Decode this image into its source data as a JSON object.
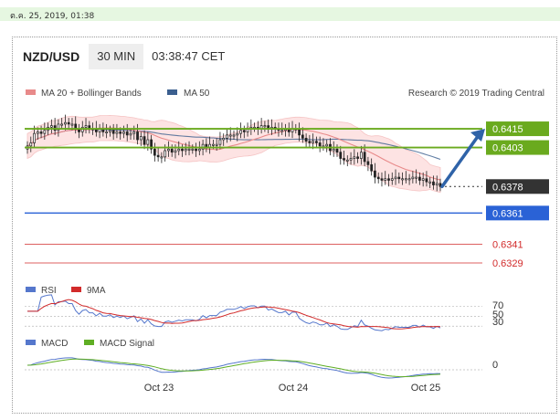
{
  "datestamp": "ต.ค. 25, 2019, 01:38",
  "header": {
    "pair": "NZD/USD",
    "timeframe": "30 MIN",
    "clock": "03:38:47 CET"
  },
  "legend": {
    "ma20": "MA 20 + Bollinger Bands",
    "ma50": "MA 50",
    "credit": "Research © 2019 Trading Central"
  },
  "colors": {
    "green": "#6aaa1e",
    "blue": "#2a62d6",
    "red": "#d22b2b",
    "dark": "#333333",
    "ma20": "#e88a8a",
    "ma50": "#3b5f8f",
    "band": "#fde3e3",
    "arrow": "#2f63a8"
  },
  "chart_data": [
    {
      "type": "line",
      "title": "NZD/USD 30 MIN",
      "x_ticks": [
        "Oct 23",
        "Oct 24",
        "Oct 25"
      ],
      "levels": [
        {
          "label": "0.6415",
          "value": 0.6415,
          "kind": "resistance"
        },
        {
          "label": "0.6403",
          "value": 0.6403,
          "kind": "resistance"
        },
        {
          "label": "0.6378",
          "value": 0.6378,
          "kind": "last"
        },
        {
          "label": "0.6361",
          "value": 0.6361,
          "kind": "pivot"
        },
        {
          "label": "0.6341",
          "value": 0.6341,
          "kind": "support"
        },
        {
          "label": "0.6329",
          "value": 0.6329,
          "kind": "support"
        }
      ],
      "series": [
        {
          "name": "MA 20 + Bollinger Bands"
        },
        {
          "name": "MA 50"
        }
      ],
      "close": [
        0.6404,
        0.6406,
        0.6412,
        0.6413,
        0.6412,
        0.6414,
        0.6416,
        0.6417,
        0.6414,
        0.6418,
        0.6418,
        0.6419,
        0.6418,
        0.6418,
        0.6415,
        0.6413,
        0.6416,
        0.6417,
        0.6415,
        0.6415,
        0.6413,
        0.6415,
        0.6413,
        0.6413,
        0.6414,
        0.6412,
        0.6413,
        0.6412,
        0.6413,
        0.6411,
        0.6412,
        0.6413,
        0.6408,
        0.641,
        0.6405,
        0.6408,
        0.6402,
        0.6398,
        0.6397,
        0.6397,
        0.6401,
        0.6402,
        0.64,
        0.6401,
        0.6402,
        0.6401,
        0.6402,
        0.6402,
        0.6402,
        0.6401,
        0.6402,
        0.6405,
        0.6403,
        0.6405,
        0.6405,
        0.6405,
        0.6408,
        0.6409,
        0.6411,
        0.6411,
        0.6411,
        0.6412,
        0.6414,
        0.6413,
        0.6415,
        0.6416,
        0.6416,
        0.6415,
        0.6417,
        0.6417,
        0.6415,
        0.6416,
        0.6415,
        0.6414,
        0.6414,
        0.6415,
        0.6413,
        0.6415,
        0.6415,
        0.6411,
        0.6409,
        0.6407,
        0.6406,
        0.6407,
        0.6406,
        0.6404,
        0.6404,
        0.6405,
        0.6401,
        0.6402,
        0.64,
        0.6396,
        0.6395,
        0.6395,
        0.6396,
        0.6397,
        0.6396,
        0.64,
        0.6394,
        0.6392,
        0.6388,
        0.6384,
        0.6383,
        0.6382,
        0.6383,
        0.6382,
        0.6383,
        0.6384,
        0.6383,
        0.6383,
        0.6383,
        0.6383,
        0.6384,
        0.6384,
        0.6382,
        0.6383,
        0.6381,
        0.6381,
        0.6379,
        0.638,
        0.6378
      ],
      "ylim": [
        0.6322,
        0.6432
      ]
    },
    {
      "type": "line",
      "title": "RSI",
      "series": [
        {
          "name": "RSI"
        },
        {
          "name": "9MA"
        }
      ],
      "y_ticks": [
        "70",
        "50",
        "30"
      ],
      "ylim": [
        25,
        80
      ]
    },
    {
      "type": "line",
      "title": "MACD",
      "series": [
        {
          "name": "MACD"
        },
        {
          "name": "MACD Signal"
        }
      ],
      "y_ticks": [
        "0"
      ]
    }
  ],
  "forecast_arrow": {
    "from": 0.6378,
    "to": 0.6415,
    "direction": "up"
  }
}
